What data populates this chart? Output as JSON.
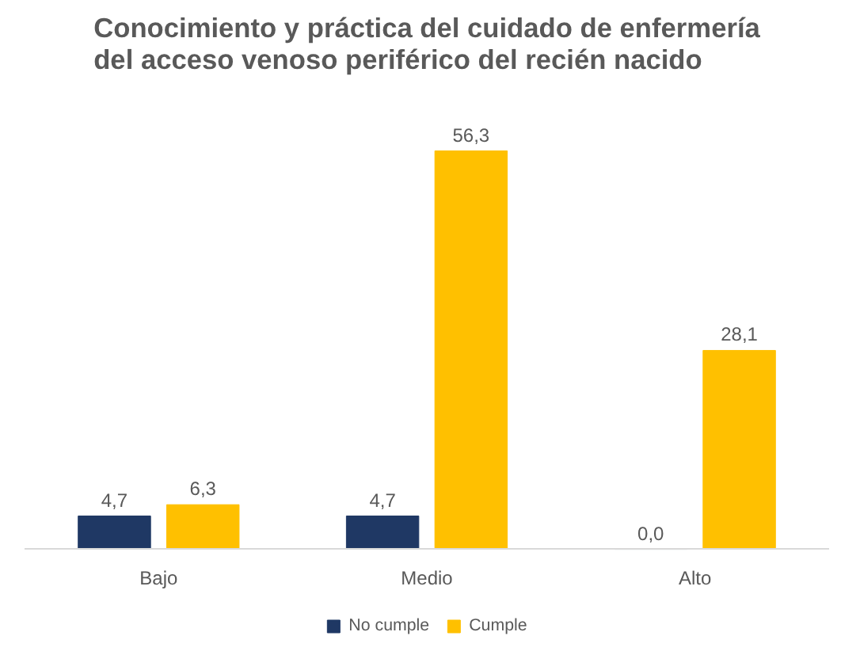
{
  "chart_data": {
    "type": "bar",
    "title": "Conocimiento y práctica del cuidado de enfermería\ndel acceso venoso periférico del recién nacido",
    "categories": [
      "Bajo",
      "Medio",
      "Alto"
    ],
    "series": [
      {
        "name": "No cumple",
        "color": "#1f3864",
        "values": [
          4.7,
          4.7,
          0.0
        ],
        "value_labels": [
          "4,7",
          "4,7",
          "0,0"
        ]
      },
      {
        "name": "Cumple",
        "color": "#ffc000",
        "values": [
          6.3,
          56.3,
          28.1
        ],
        "value_labels": [
          "6,3",
          "56,3",
          "28,1"
        ]
      }
    ],
    "legend": "bottom"
  }
}
